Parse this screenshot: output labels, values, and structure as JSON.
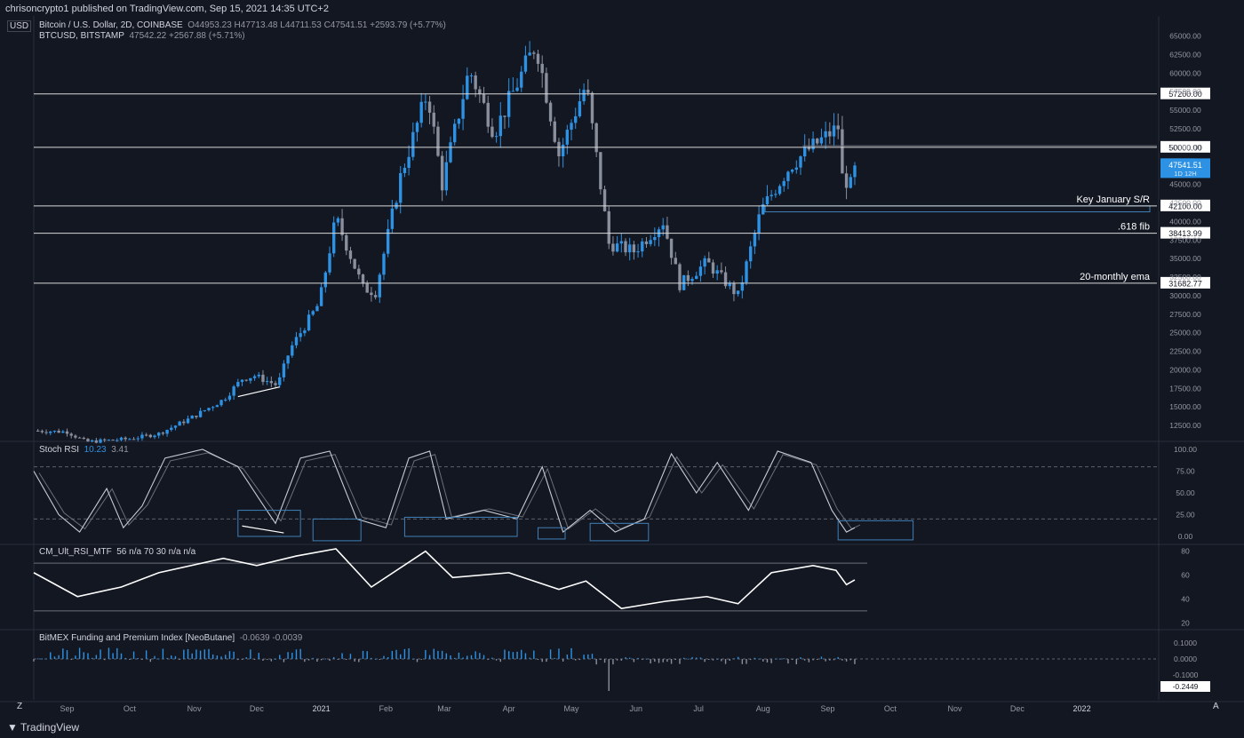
{
  "header": {
    "publisher": "chrisoncrypto1 published on TradingView.com, Sep 15, 2021 14:35 UTC+2",
    "currency": "USD",
    "main_symbol": "Bitcoin / U.S. Dollar, 2D, COINBASE",
    "main_ohlc": "O44953.23  H47713.48  L44711.53  C47541.51  +2593.79 (+5.77%)",
    "second_symbol": "BTCUSD, BITSTAMP",
    "second_values": "47542.22  +2567.88 (+5.71%)"
  },
  "footer": {
    "logo_text": "TradingView",
    "z_button": "Z",
    "a_button": "A"
  },
  "colors": {
    "background": "#131722",
    "up": "#2e92e4",
    "down": "#8a8f9e",
    "level_line": "#d8d8d8",
    "panel_line": "#d1d4dc",
    "box": "#3f80b8"
  },
  "chart_data": {
    "type": "candlestick",
    "y_axis_ticks": [
      "65000.00",
      "62500.00",
      "60000.00",
      "57500.00",
      "55000.00",
      "52500.00",
      "50000.00",
      "47500.00",
      "45000.00",
      "42500.00",
      "40000.00",
      "37500.00",
      "35000.00",
      "32500.00",
      "30000.00",
      "27500.00",
      "25000.00",
      "22500.00",
      "20000.00",
      "17500.00",
      "15000.00",
      "12500.00"
    ],
    "ylim": [
      10600,
      66500
    ],
    "x_axis_labels": [
      "Sep",
      "Oct",
      "Nov",
      "Dec",
      "2021",
      "Feb",
      "Mar",
      "Apr",
      "May",
      "Jun",
      "Jul",
      "Aug",
      "Sep",
      "Oct",
      "Nov",
      "Dec",
      "2022"
    ],
    "last_price_label": "47541.51",
    "symbol_label": "BTCUSD",
    "last_price_sub": "1D 12H",
    "levels": [
      {
        "value": 57200,
        "price_label": "57200.00",
        "note": ""
      },
      {
        "value": 50000,
        "price_label": "50000.00",
        "note": ""
      },
      {
        "value": 42100,
        "price_label": "42100.00",
        "note": "Key January S/R"
      },
      {
        "value": 38413.99,
        "price_label": "38413.99",
        "note": ".618 fib"
      },
      {
        "value": 31682.77,
        "price_label": "31682.77",
        "note": "20-monthly ema"
      }
    ],
    "close_path": [
      [
        "2020-08-16",
        11800
      ],
      [
        "2020-09-01",
        11650
      ],
      [
        "2020-09-10",
        10300
      ],
      [
        "2020-10-01",
        10700
      ],
      [
        "2020-10-15",
        11400
      ],
      [
        "2020-10-31",
        13600
      ],
      [
        "2020-11-15",
        16000
      ],
      [
        "2020-11-24",
        18800
      ],
      [
        "2020-11-30",
        19200
      ],
      [
        "2020-12-11",
        17900
      ],
      [
        "2020-12-17",
        22800
      ],
      [
        "2020-12-31",
        29000
      ],
      [
        "2021-01-08",
        40500
      ],
      [
        "2021-01-21",
        31000
      ],
      [
        "2021-01-27",
        30500
      ],
      [
        "2021-02-08",
        46000
      ],
      [
        "2021-02-21",
        57500
      ],
      [
        "2021-02-28",
        45000
      ],
      [
        "2021-03-13",
        60500
      ],
      [
        "2021-03-25",
        52000
      ],
      [
        "2021-04-14",
        64000
      ],
      [
        "2021-04-25",
        49000
      ],
      [
        "2021-05-08",
        58500
      ],
      [
        "2021-05-19",
        37000
      ],
      [
        "2021-05-31",
        36000
      ],
      [
        "2021-06-14",
        40000
      ],
      [
        "2021-06-22",
        31500
      ],
      [
        "2021-07-05",
        34500
      ],
      [
        "2021-07-20",
        30000
      ],
      [
        "2021-07-31",
        41500
      ],
      [
        "2021-08-14",
        47500
      ],
      [
        "2021-08-22",
        49500
      ],
      [
        "2021-09-06",
        52700
      ],
      [
        "2021-09-08",
        46000
      ],
      [
        "2021-09-12",
        44900
      ],
      [
        "2021-09-14",
        47541.51
      ]
    ],
    "stoch_rsi": {
      "label": "Stoch RSI",
      "k": "10.23",
      "d": "3.41",
      "ticks": [
        "100.00",
        "75.00",
        "50.00",
        "25.00",
        "0.00"
      ],
      "bands": [
        80,
        20
      ],
      "path": [
        [
          "2020-08-16",
          75
        ],
        [
          "2020-08-28",
          25
        ],
        [
          "2020-09-07",
          5
        ],
        [
          "2020-09-20",
          55
        ],
        [
          "2020-09-28",
          10
        ],
        [
          "2020-10-07",
          35
        ],
        [
          "2020-10-18",
          90
        ],
        [
          "2020-11-05",
          100
        ],
        [
          "2020-11-22",
          80
        ],
        [
          "2020-12-03",
          40
        ],
        [
          "2020-12-10",
          15
        ],
        [
          "2020-12-22",
          90
        ],
        [
          "2021-01-05",
          98
        ],
        [
          "2021-01-18",
          20
        ],
        [
          "2021-02-01",
          10
        ],
        [
          "2021-02-12",
          90
        ],
        [
          "2021-02-22",
          98
        ],
        [
          "2021-03-02",
          20
        ],
        [
          "2021-03-20",
          30
        ],
        [
          "2021-04-05",
          20
        ],
        [
          "2021-04-17",
          80
        ],
        [
          "2021-04-27",
          5
        ],
        [
          "2021-05-10",
          30
        ],
        [
          "2021-05-22",
          5
        ],
        [
          "2021-06-05",
          20
        ],
        [
          "2021-06-18",
          95
        ],
        [
          "2021-06-30",
          50
        ],
        [
          "2021-07-10",
          85
        ],
        [
          "2021-07-25",
          30
        ],
        [
          "2021-08-08",
          98
        ],
        [
          "2021-08-24",
          85
        ],
        [
          "2021-09-03",
          30
        ],
        [
          "2021-09-10",
          5
        ],
        [
          "2021-09-14",
          10
        ]
      ]
    },
    "cm_rsi": {
      "label": "CM_Ult_RSI_MTF",
      "values": "56  n/a  70  30  n/a  n/a",
      "ticks": [
        "80",
        "60",
        "40",
        "20"
      ],
      "bands": [
        70,
        30
      ],
      "path": [
        [
          "2020-08-16",
          62
        ],
        [
          "2020-09-06",
          42
        ],
        [
          "2020-09-27",
          50
        ],
        [
          "2020-10-15",
          62
        ],
        [
          "2020-11-15",
          74
        ],
        [
          "2020-12-01",
          68
        ],
        [
          "2020-12-20",
          76
        ],
        [
          "2021-01-08",
          82
        ],
        [
          "2021-01-25",
          50
        ],
        [
          "2021-02-20",
          80
        ],
        [
          "2021-03-05",
          58
        ],
        [
          "2021-04-01",
          62
        ],
        [
          "2021-04-25",
          48
        ],
        [
          "2021-05-08",
          55
        ],
        [
          "2021-05-25",
          32
        ],
        [
          "2021-06-15",
          38
        ],
        [
          "2021-07-05",
          42
        ],
        [
          "2021-07-20",
          36
        ],
        [
          "2021-08-05",
          62
        ],
        [
          "2021-08-25",
          68
        ],
        [
          "2021-09-05",
          64
        ],
        [
          "2021-09-10",
          52
        ],
        [
          "2021-09-14",
          56
        ]
      ]
    },
    "bitmex": {
      "label": "BitMEX Funding and Premium Index [NeoButane]",
      "values": "-0.0639  -0.0039",
      "ticks": [
        "0.1000",
        "0.0000",
        "-0.1000"
      ],
      "last_label": "-0.2449"
    }
  }
}
